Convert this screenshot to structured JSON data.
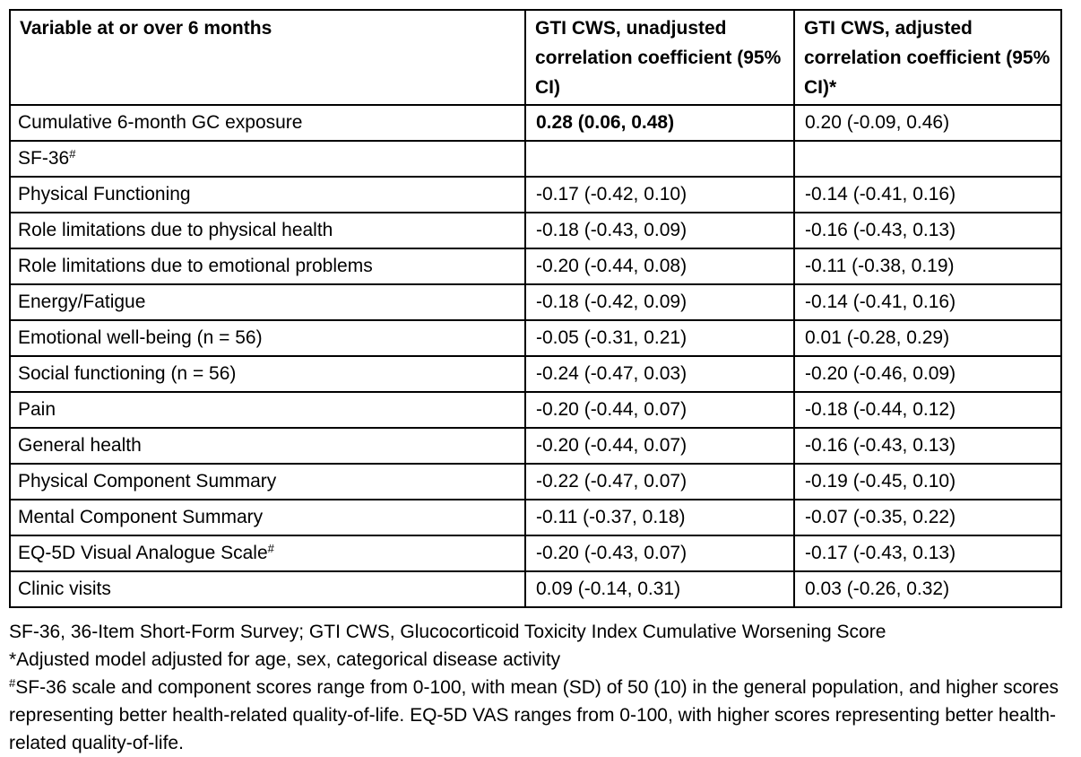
{
  "table": {
    "headers": [
      {
        "text": "Variable at or over 6 months"
      },
      {
        "text": "GTI CWS, unadjusted correlation coefficient (95% CI)"
      },
      {
        "text": "GTI CWS, adjusted correlation coefficient (95% CI)*"
      }
    ],
    "rows": [
      {
        "label": "Cumulative 6-month GC exposure",
        "sup": "",
        "indent": 0,
        "unadjusted": "0.28 (0.06, 0.48)",
        "unadjusted_bold": true,
        "adjusted": "0.20 (-0.09, 0.46)"
      },
      {
        "label": "SF-36",
        "sup": "#",
        "indent": 0,
        "unadjusted": "",
        "unadjusted_bold": false,
        "adjusted": ""
      },
      {
        "label": "Physical Functioning",
        "sup": "",
        "indent": 2,
        "unadjusted": "-0.17 (-0.42, 0.10)",
        "unadjusted_bold": false,
        "adjusted": "-0.14 (-0.41, 0.16)"
      },
      {
        "label": "Role limitations due to physical health",
        "sup": "",
        "indent": 1,
        "unadjusted": "-0.18 (-0.43, 0.09)",
        "unadjusted_bold": false,
        "adjusted": "-0.16 (-0.43, 0.13)"
      },
      {
        "label": "Role limitations due to emotional problems",
        "sup": "",
        "indent": 1,
        "unadjusted": "-0.20 (-0.44, 0.08)",
        "unadjusted_bold": false,
        "adjusted": "-0.11 (-0.38, 0.19)"
      },
      {
        "label": "Energy/Fatigue",
        "sup": "",
        "indent": 1,
        "unadjusted": "-0.18 (-0.42, 0.09)",
        "unadjusted_bold": false,
        "adjusted": "-0.14 (-0.41, 0.16)"
      },
      {
        "label": "Emotional well-being (n = 56)",
        "sup": "",
        "indent": 1,
        "unadjusted": "-0.05 (-0.31, 0.21)",
        "unadjusted_bold": false,
        "adjusted": "0.01 (-0.28, 0.29)"
      },
      {
        "label": "Social functioning (n = 56)",
        "sup": "",
        "indent": 1,
        "unadjusted": "-0.24 (-0.47, 0.03)",
        "unadjusted_bold": false,
        "adjusted": "-0.20 (-0.46, 0.09)"
      },
      {
        "label": "Pain",
        "sup": "",
        "indent": 1,
        "unadjusted": "-0.20 (-0.44, 0.07)",
        "unadjusted_bold": false,
        "adjusted": "-0.18 (-0.44, 0.12)"
      },
      {
        "label": "General health",
        "sup": "",
        "indent": 1,
        "unadjusted": "-0.20 (-0.44, 0.07)",
        "unadjusted_bold": false,
        "adjusted": "-0.16 (-0.43, 0.13)"
      },
      {
        "label": "Physical Component Summary",
        "sup": "",
        "indent": 1,
        "unadjusted": "-0.22 (-0.47, 0.07)",
        "unadjusted_bold": false,
        "adjusted": "-0.19 (-0.45, 0.10)"
      },
      {
        "label": "Mental Component Summary",
        "sup": "",
        "indent": 1,
        "unadjusted": "-0.11 (-0.37, 0.18)",
        "unadjusted_bold": false,
        "adjusted": "-0.07 (-0.35, 0.22)"
      },
      {
        "label": "EQ-5D Visual Analogue Scale",
        "sup": "#",
        "indent": 0,
        "unadjusted": "-0.20 (-0.43, 0.07)",
        "unadjusted_bold": false,
        "adjusted": "-0.17 (-0.43, 0.13)"
      },
      {
        "label": "Clinic visits",
        "sup": "",
        "indent": 0,
        "unadjusted": "0.09 (-0.14, 0.31)",
        "unadjusted_bold": false,
        "adjusted": "0.03 (-0.26, 0.32)"
      }
    ]
  },
  "footnotes": [
    {
      "prefix_sup": "",
      "text": "SF-36, 36-Item Short-Form Survey; GTI CWS, Glucocorticoid Toxicity Index Cumulative Worsening Score"
    },
    {
      "prefix_sup": "",
      "text": "*Adjusted model adjusted for age, sex, categorical disease activity"
    },
    {
      "prefix_sup": "#",
      "text": "SF-36 scale and component scores range from 0-100, with mean (SD) of 50 (10) in the general population, and higher scores representing better health-related quality-of-life. EQ-5D VAS ranges from 0-100, with higher scores representing better health-related quality-of-life."
    }
  ]
}
